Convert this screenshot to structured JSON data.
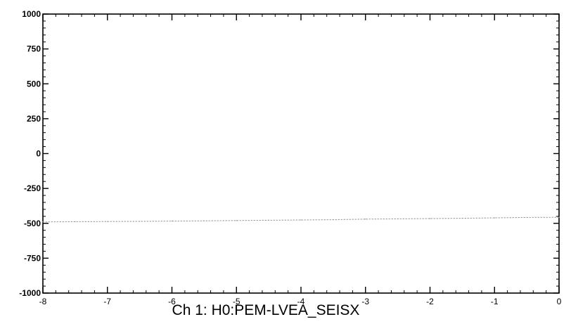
{
  "chart_data": {
    "type": "line",
    "title": "Ch 1:  H0:PEM-LVEA_SEISX",
    "xlabel": "",
    "ylabel": "",
    "xlim": [
      -8,
      0
    ],
    "ylim": [
      -1000,
      1000
    ],
    "x_ticks": [
      -8,
      -7,
      -6,
      -5,
      -4,
      -3,
      -2,
      -1,
      0
    ],
    "x_tick_labels": [
      "-8",
      "-7",
      "-6",
      "-5",
      "-4",
      "-3",
      "-2",
      "-1",
      "0"
    ],
    "y_ticks": [
      -1000,
      -750,
      -500,
      -250,
      0,
      250,
      500,
      750,
      1000
    ],
    "y_tick_labels": [
      "-1000",
      "-750",
      "-500",
      "-250",
      "0",
      "250",
      "500",
      "750",
      "1000"
    ],
    "grid": false,
    "series": [
      {
        "x": [
          -8.0,
          -7.5,
          -7.0,
          -6.5,
          -6.0,
          -5.5,
          -5.0,
          -4.5,
          -4.0,
          -3.5,
          -3.0,
          -2.5,
          -2.0,
          -1.5,
          -1.0,
          -0.5,
          0.0
        ],
        "values": [
          -490,
          -488,
          -487,
          -486,
          -484,
          -482,
          -480,
          -478,
          -476,
          -474,
          -470,
          -468,
          -466,
          -464,
          -461,
          -458,
          -457
        ],
        "color": "#9a9a9a"
      }
    ]
  }
}
